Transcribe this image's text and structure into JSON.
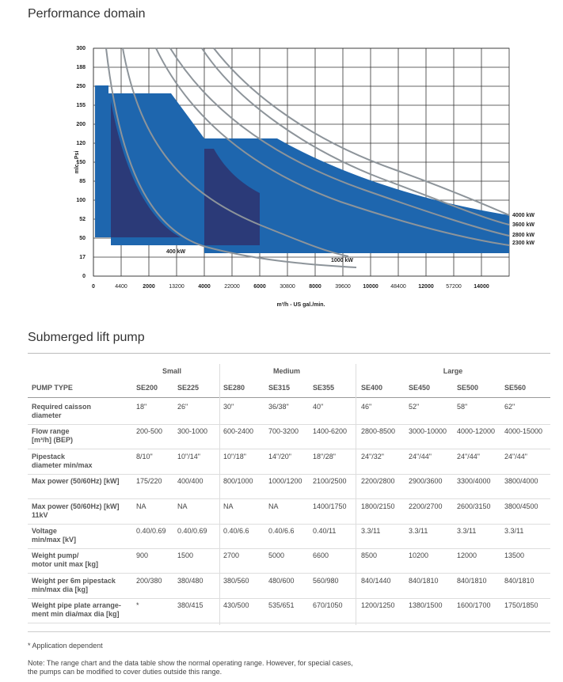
{
  "chart_data": {
    "type": "range",
    "title": "Performance domain",
    "xlabel": "m³/h - US gal./min.",
    "ylabel": "mlc - Psi",
    "xlim": [
      0,
      15000
    ],
    "ylim": [
      0,
      300
    ],
    "xticks": [
      0,
      {
        "value": 1000,
        "label": "4400"
      },
      2000,
      {
        "value": 3000,
        "label": "13200"
      },
      4000,
      {
        "value": 5000,
        "label": "22000"
      },
      6000,
      {
        "value": 7000,
        "label": "30800"
      },
      8000,
      {
        "value": 9000,
        "label": "39600"
      },
      10000,
      {
        "value": 11000,
        "label": "48400"
      },
      12000,
      {
        "value": 13000,
        "label": "57200"
      },
      14000
    ],
    "yticks": [
      0,
      {
        "value": 25,
        "label": "17"
      },
      50,
      {
        "value": 75,
        "label": "52"
      },
      100,
      {
        "value": 125,
        "label": "85"
      },
      150,
      {
        "value": 175,
        "label": "120"
      },
      200,
      {
        "value": 225,
        "label": "155"
      },
      250,
      {
        "value": 275,
        "label": "188"
      },
      300
    ],
    "grid": true,
    "annotations": [
      "400 kW",
      "1000 kW",
      "4000 kW",
      "3600 kW",
      "2800 kW",
      "2300 kW"
    ]
  },
  "section_title": "Submerged lift pump",
  "table": {
    "groups": [
      "Small",
      "Medium",
      "Large"
    ],
    "header": [
      "PUMP TYPE",
      "SE200",
      "SE225",
      "SE280",
      "SE315",
      "SE355",
      "SE400",
      "SE450",
      "SE500",
      "SE560"
    ],
    "rows": [
      [
        "Required caisson\ndiameter",
        "18\"",
        "26\"",
        "30\"",
        "36/38\"",
        "40\"",
        "46\"",
        "52\"",
        "58\"",
        "62\""
      ],
      [
        "Flow range\n[m³/h] (BEP)",
        "200-500",
        "300-1000",
        "600-2400",
        "700-3200",
        "1400-6200",
        "2800-8500",
        "3000-10000",
        "4000-12000",
        "4000-15000"
      ],
      [
        "Pipestack\ndiameter min/max",
        "8/10\"",
        "10\"/14\"",
        "10\"/18\"",
        "14\"/20\"",
        "18\"/28\"",
        "24\"/32\"",
        "24\"/44\"",
        "24\"/44\"",
        "24\"/44\""
      ],
      [
        "Max power (50/60Hz) [kW]",
        "175/220",
        "400/400",
        "800/1000",
        "1000/1200",
        "2100/2500",
        "2200/2800",
        "2900/3600",
        "3300/4000",
        "3800/4000"
      ],
      [
        "Max power (50/60Hz) [kW]\n11kV",
        "NA",
        "NA",
        "NA",
        "NA",
        "1400/1750",
        "1800/2150",
        "2200/2700",
        "2600/3150",
        "3800/4500"
      ],
      [
        "Voltage\nmin/max [kV]",
        "0.40/0.69",
        "0.40/0.69",
        "0.40/6.6",
        "0.40/6.6",
        "0.40/11",
        "3.3/11",
        "3.3/11",
        "3.3/11",
        "3.3/11"
      ],
      [
        "Weight pump/\nmotor unit max [kg]",
        "900",
        "1500",
        "2700",
        "5000",
        "6600",
        "8500",
        "10200",
        "12000",
        "13500"
      ],
      [
        "Weight per 6m pipestack\nmin/max dia [kg]",
        "200/380",
        "380/480",
        "380/560",
        "480/600",
        "560/980",
        "840/1440",
        "840/1810",
        "840/1810",
        "840/1810"
      ],
      [
        "Weight pipe plate arrange-\nment min dia/max dia [kg]",
        "*",
        "380/415",
        "430/500",
        "535/651",
        "670/1050",
        "1200/1250",
        "1380/1500",
        "1600/1700",
        "1750/1850"
      ]
    ]
  },
  "footnote": "* Application dependent",
  "note": "Note: The range chart and the data table show the normal operating range. However, for special cases,\nthe pumps can be modified to cover duties outside this range."
}
